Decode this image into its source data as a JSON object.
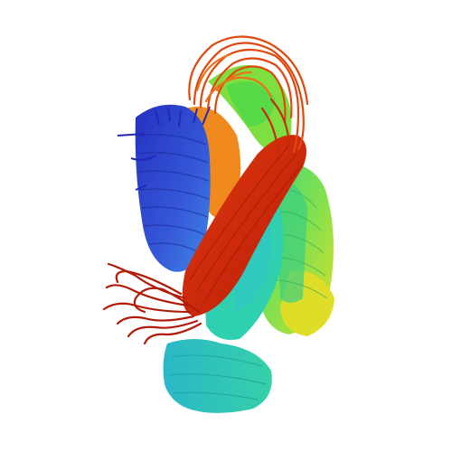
{
  "image": {
    "subject": "protein-structure-ensemble-ribbon",
    "background": "#ffffff",
    "palette": {
      "n_terminus": "#2b35c8",
      "blue_light": "#3f7fe0",
      "cyan": "#29c9c0",
      "teal": "#2ac49a",
      "green": "#4fd84a",
      "yellow_green": "#b8e03a",
      "yellow": "#e6e22a",
      "orange": "#f07a18",
      "red": "#d02a10",
      "c_terminus": "#a81a08"
    }
  }
}
